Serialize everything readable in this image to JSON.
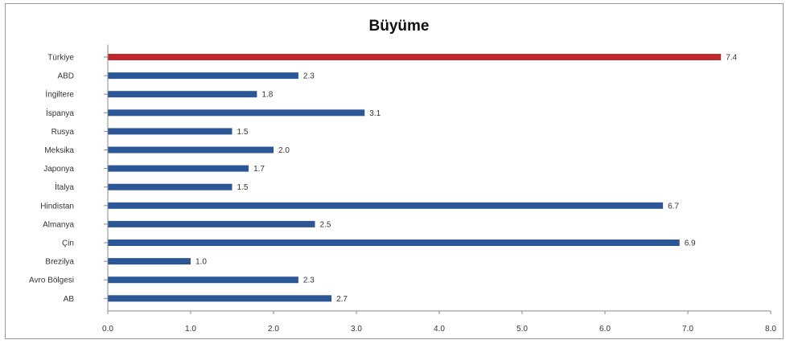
{
  "chart_data": {
    "type": "bar",
    "orientation": "horizontal",
    "title": "Büyüme",
    "categories": [
      "Türkiye",
      "ABD",
      "İngiltere",
      "İspanya",
      "Rusya",
      "Meksika",
      "Japonya",
      "İtalya",
      "Hindistan",
      "Almanya",
      "Çin",
      "Brezilya",
      "Avro Bölgesi",
      "AB"
    ],
    "values": [
      7.4,
      2.3,
      1.8,
      3.1,
      1.5,
      2.0,
      1.7,
      1.5,
      6.7,
      2.5,
      6.9,
      1.0,
      2.3,
      2.7
    ],
    "value_labels": [
      "7.4",
      "2.3",
      "1.8",
      "3.1",
      "1.5",
      "2.0",
      "1.7",
      "1.5",
      "6.7",
      "2.5",
      "6.9",
      "1.0",
      "2.3",
      "2.7"
    ],
    "highlight_index": 0,
    "colors": {
      "highlight": "#c0282d",
      "bar": "#2b5797"
    },
    "xlim": [
      0,
      8
    ],
    "x_ticks": [
      "0.0",
      "1.0",
      "2.0",
      "3.0",
      "4.0",
      "5.0",
      "6.0",
      "7.0",
      "8.0"
    ],
    "grid": false,
    "legend": "none"
  }
}
